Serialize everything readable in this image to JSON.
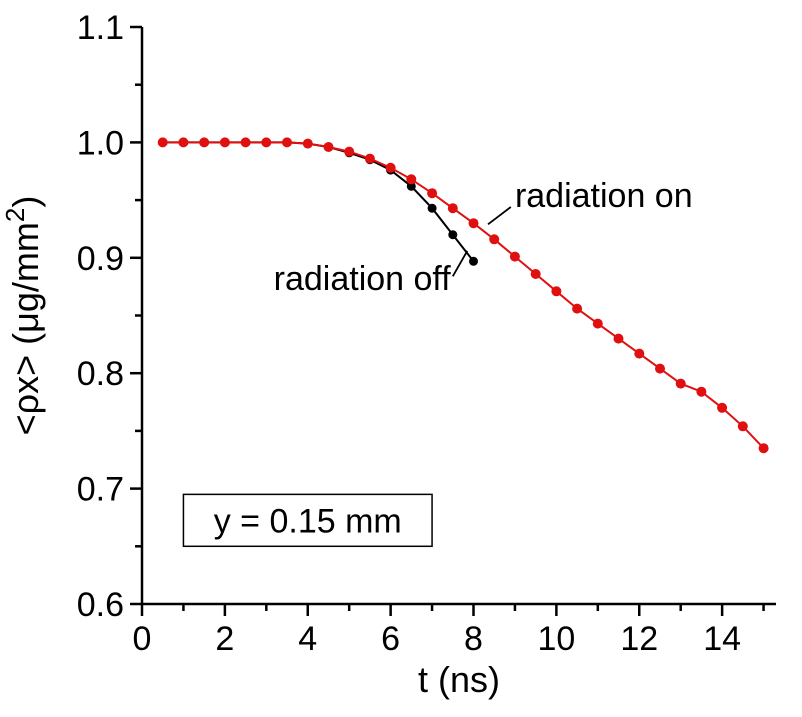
{
  "page": {
    "background": "#ffffff"
  },
  "chart_data": {
    "type": "line",
    "title": "",
    "xlabel": "t (ns)",
    "ylabel": {
      "pre": "<ρx> (μg/mm",
      "sup": "2",
      "post": ")"
    },
    "xlim": [
      0,
      15.3
    ],
    "ylim": [
      0.6,
      1.1
    ],
    "grid": false,
    "legend_position": "inline-annotations",
    "axis_color": "#000000",
    "xticks": {
      "values": [
        0,
        2,
        4,
        6,
        8,
        10,
        12,
        14
      ],
      "labels": [
        "0",
        "2",
        "4",
        "6",
        "8",
        "10",
        "12",
        "14"
      ]
    },
    "yticks": {
      "values": [
        0.6,
        0.7,
        0.8,
        0.9,
        1.0,
        1.1
      ],
      "labels": [
        "0.6",
        "0.7",
        "0.8",
        "0.9",
        "1.0",
        "1.1"
      ]
    },
    "xminor": [
      1,
      3,
      5,
      7,
      9,
      11,
      13,
      15
    ],
    "yminor": [
      0.65,
      0.75,
      0.85,
      0.95,
      1.05
    ],
    "series": [
      {
        "name": "radiation off",
        "color": "#000000",
        "marker_radius": 4.5,
        "x": [
          0.5,
          1,
          1.5,
          2,
          2.5,
          3,
          3.5,
          4,
          4.5,
          5,
          5.5,
          6,
          6.5,
          7,
          7.5,
          8
        ],
        "y": [
          1.0,
          1.0,
          1.0,
          1.0,
          1.0,
          1.0,
          1.0,
          0.999,
          0.996,
          0.991,
          0.985,
          0.976,
          0.962,
          0.943,
          0.92,
          0.897
        ]
      },
      {
        "name": "radiation on",
        "color": "#e01010",
        "marker_radius": 5,
        "x": [
          0.5,
          1,
          1.5,
          2,
          2.5,
          3,
          3.5,
          4,
          4.5,
          5,
          5.5,
          6,
          6.5,
          7,
          7.5,
          8,
          8.5,
          9,
          9.5,
          10,
          10.5,
          11,
          11.5,
          12,
          12.5,
          13,
          13.5,
          14,
          14.5,
          15
        ],
        "y": [
          1.0,
          1.0,
          1.0,
          1.0,
          1.0,
          1.0,
          1.0,
          0.999,
          0.996,
          0.992,
          0.986,
          0.978,
          0.968,
          0.956,
          0.943,
          0.93,
          0.916,
          0.901,
          0.886,
          0.871,
          0.856,
          0.843,
          0.83,
          0.817,
          0.804,
          0.791,
          0.784,
          0.77,
          0.754,
          0.735
        ]
      }
    ],
    "annotations": [
      {
        "text": "radiation on",
        "x": 9.0,
        "y": 0.944,
        "anchor": "start",
        "line": {
          "x1": 8.9,
          "y1": 0.944,
          "x2": 8.35,
          "y2": 0.929
        }
      },
      {
        "text": "radiation off",
        "x": 7.45,
        "y": 0.872,
        "anchor": "end",
        "line": {
          "x1": 7.5,
          "y1": 0.884,
          "x2": 7.85,
          "y2": 0.906
        }
      },
      {
        "text": "y = 0.15 mm",
        "box": {
          "x1": 1.0,
          "y1": 0.65,
          "x2": 7.0,
          "y2": 0.695
        }
      }
    ]
  }
}
